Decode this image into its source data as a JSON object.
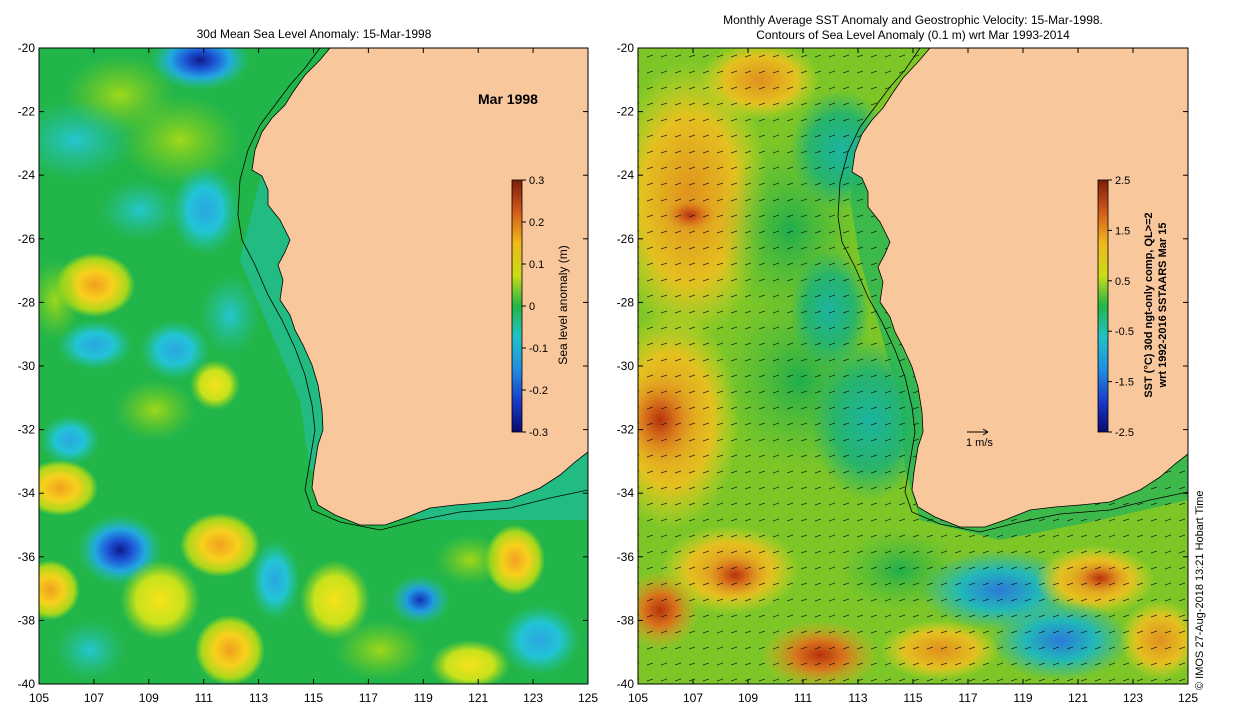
{
  "left_panel": {
    "title": "30d Mean Sea Level Anomaly: 15-Mar-1998",
    "month_label": "Mar 1998",
    "colorbar_label": "Sea level anomaly (m)",
    "colorbar_ticks": [
      "0.3",
      "0.2",
      "0.1",
      "0",
      "-0.1",
      "-0.2",
      "-0.3"
    ]
  },
  "right_panel": {
    "title_line1": "Monthly Average SST Anomaly  and Geostrophic Velocity: 15-Mar-1998.",
    "title_line2": "Contours of Sea Level Anomaly (0.1 m) wrt Mar 1993-2014",
    "colorbar_label_line1": "SST (°C) 30d ngt-only comp, QL>=2",
    "colorbar_label_line2": "wrt 1992-2016 SSTAARS Mar 15",
    "colorbar_ticks": [
      "2.5",
      "1.5",
      "0.5",
      "-0.5",
      "-1.5",
      "-2.5"
    ],
    "scale_label": "1 m/s"
  },
  "lat_ticks": [
    "-20",
    "-22",
    "-24",
    "-26",
    "-28",
    "-30",
    "-32",
    "-34",
    "-36",
    "-38",
    "-40"
  ],
  "lon_ticks": [
    "105",
    "107",
    "109",
    "111",
    "113",
    "115",
    "117",
    "119",
    "121",
    "123",
    "125"
  ],
  "credit": "© IMOS 27-Aug-2018 13:21 Hobart Time",
  "colors": {
    "land": "#f9c79c",
    "ocean_base": "#22b64a"
  }
}
